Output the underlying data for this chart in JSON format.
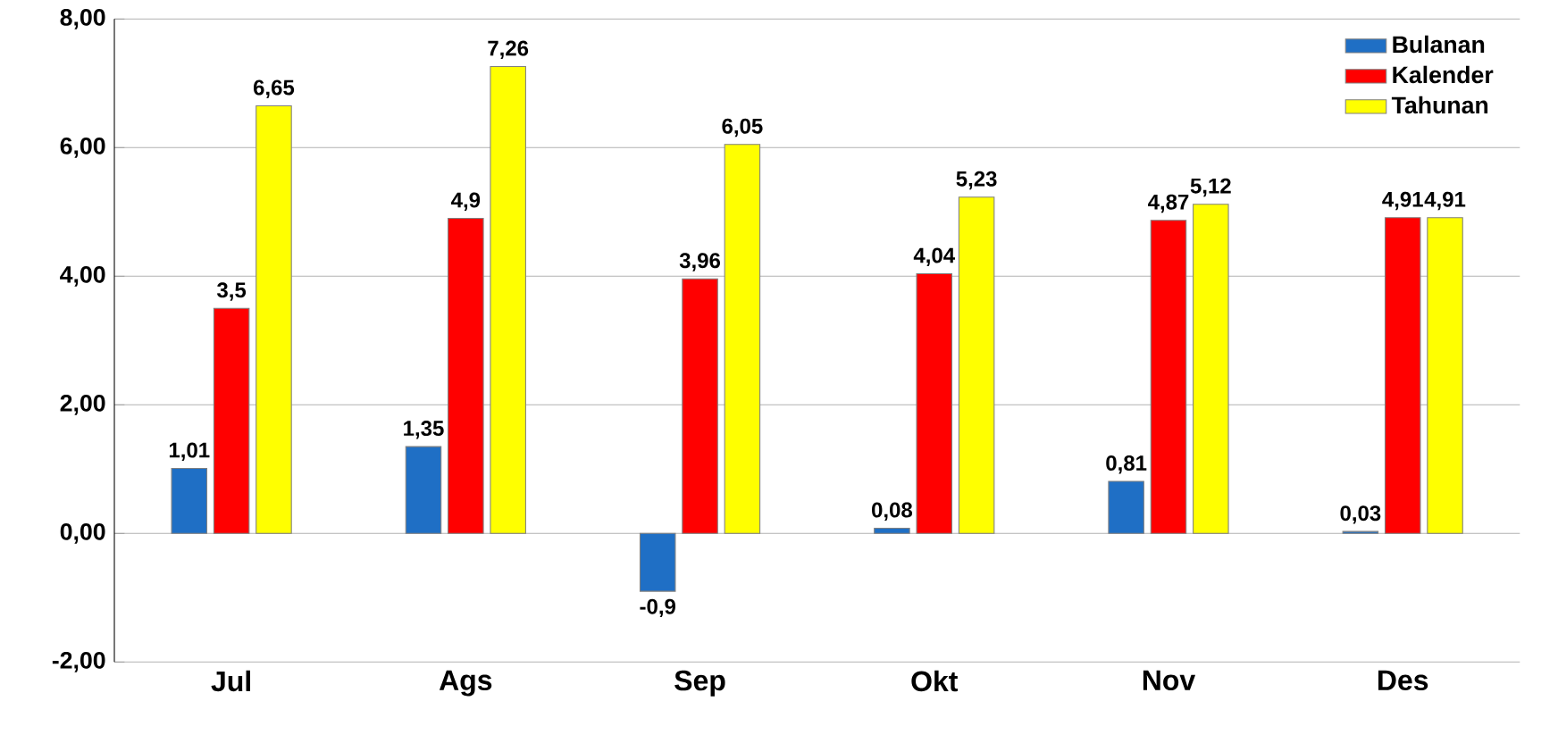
{
  "chart_data": {
    "type": "bar",
    "categories": [
      "Jul",
      "Ags",
      "Sep",
      "Okt",
      "Nov",
      "Des"
    ],
    "series": [
      {
        "name": "Bulanan",
        "color": "#1f6fc5",
        "values": [
          1.01,
          1.35,
          -0.9,
          0.08,
          0.81,
          0.03
        ],
        "value_labels": [
          "1,01",
          "1,35",
          "-0,9",
          "0,08",
          "0,81",
          "0,03"
        ]
      },
      {
        "name": "Kalender",
        "color": "#ff0000",
        "values": [
          3.5,
          4.9,
          3.96,
          4.04,
          4.87,
          4.91
        ],
        "value_labels": [
          "3,5",
          "4,9",
          "3,96",
          "4,04",
          "4,87",
          "4,91"
        ]
      },
      {
        "name": "Tahunan",
        "color": "#ffff00",
        "values": [
          6.65,
          7.26,
          6.05,
          5.23,
          5.12,
          4.91
        ],
        "value_labels": [
          "6,65",
          "7,26",
          "6,05",
          "5,23",
          "5,12",
          "4,91"
        ]
      }
    ],
    "ylim": [
      -2,
      8
    ],
    "yticks": [
      {
        "value": -2,
        "label": "-2,00"
      },
      {
        "value": 0,
        "label": "0,00"
      },
      {
        "value": 2,
        "label": "2,00"
      },
      {
        "value": 4,
        "label": "4,00"
      },
      {
        "value": 6,
        "label": "6,00"
      },
      {
        "value": 8,
        "label": "8,00"
      }
    ],
    "grid": "y",
    "legend": "top right"
  }
}
